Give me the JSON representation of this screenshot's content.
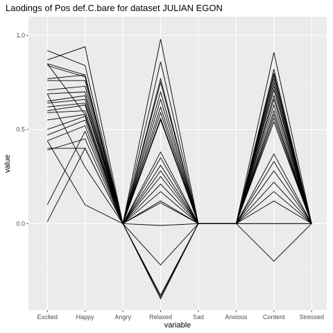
{
  "chart_data": {
    "type": "line",
    "title": "Laodings of Pos def.C.bare for dataset JULIAN EGON",
    "xlabel": "variable",
    "ylabel": "value",
    "categories": [
      "Excited",
      "Happy",
      "Angry",
      "Relaxed",
      "Sad",
      "Anxious",
      "Content",
      "Stressed"
    ],
    "y_ticks": [
      0.0,
      0.5,
      1.0
    ],
    "y_tick_labels": [
      "0.0",
      "0.5",
      "1.0"
    ],
    "ylim": [
      -0.46,
      1.1
    ],
    "grid": true,
    "background": "#ebebeb",
    "line_color": "#000000",
    "series": [
      {
        "values": [
          0.92,
          0.84,
          0.0,
          0.98,
          0.0,
          0.0,
          0.91,
          0.0
        ]
      },
      {
        "values": [
          0.87,
          0.94,
          0.0,
          0.86,
          0.0,
          0.0,
          0.82,
          0.0
        ]
      },
      {
        "values": [
          0.85,
          0.79,
          0.0,
          0.77,
          0.0,
          0.0,
          0.8,
          0.0
        ]
      },
      {
        "values": [
          0.84,
          0.78,
          0.0,
          0.75,
          0.0,
          0.0,
          0.79,
          0.0
        ]
      },
      {
        "values": [
          0.77,
          0.79,
          0.0,
          0.7,
          0.0,
          0.0,
          0.77,
          0.0
        ]
      },
      {
        "values": [
          0.76,
          0.76,
          0.0,
          0.66,
          0.0,
          0.0,
          0.75,
          0.0
        ]
      },
      {
        "values": [
          0.71,
          0.73,
          0.0,
          0.62,
          0.0,
          0.0,
          0.73,
          0.0
        ]
      },
      {
        "values": [
          0.69,
          0.7,
          0.0,
          0.59,
          0.0,
          0.0,
          0.71,
          0.0
        ]
      },
      {
        "values": [
          0.65,
          0.68,
          0.0,
          0.56,
          0.0,
          0.0,
          0.68,
          0.0
        ]
      },
      {
        "values": [
          0.64,
          0.66,
          0.0,
          0.55,
          0.0,
          0.0,
          0.66,
          0.0
        ]
      },
      {
        "values": [
          0.6,
          0.63,
          0.0,
          0.38,
          0.0,
          0.0,
          0.63,
          0.0
        ]
      },
      {
        "values": [
          0.59,
          0.6,
          0.0,
          0.35,
          0.0,
          0.0,
          0.6,
          0.0
        ]
      },
      {
        "values": [
          0.55,
          0.58,
          0.0,
          0.31,
          0.0,
          0.0,
          0.58,
          0.0
        ]
      },
      {
        "values": [
          0.5,
          0.57,
          0.0,
          0.28,
          0.0,
          0.0,
          0.56,
          0.0
        ]
      },
      {
        "values": [
          0.47,
          0.55,
          0.0,
          0.25,
          0.0,
          0.0,
          0.54,
          0.0
        ]
      },
      {
        "values": [
          0.44,
          0.52,
          0.0,
          0.21,
          0.0,
          0.0,
          0.37,
          0.0
        ]
      },
      {
        "values": [
          0.4,
          0.4,
          0.0,
          0.17,
          0.0,
          0.0,
          0.33,
          0.0
        ]
      },
      {
        "values": [
          0.39,
          0.45,
          0.0,
          0.12,
          0.0,
          0.0,
          0.28,
          0.0
        ]
      },
      {
        "values": [
          0.1,
          0.49,
          0.0,
          0.11,
          0.0,
          0.0,
          0.22,
          0.0
        ]
      },
      {
        "values": [
          0.01,
          0.4,
          0.0,
          -0.01,
          0.0,
          0.0,
          0.17,
          0.0
        ]
      },
      {
        "values": [
          0.69,
          0.3,
          0.0,
          -0.22,
          0.0,
          0.0,
          0.12,
          0.0
        ]
      },
      {
        "values": [
          0.85,
          0.58,
          0.0,
          -0.38,
          0.0,
          0.0,
          0.0,
          0.0
        ]
      },
      {
        "values": [
          0.62,
          0.64,
          0.0,
          -0.39,
          0.0,
          0.0,
          -0.2,
          0.0
        ]
      },
      {
        "values": [
          0.44,
          0.1,
          0.0,
          -0.4,
          0.0,
          0.0,
          0.0,
          0.0
        ]
      }
    ]
  }
}
